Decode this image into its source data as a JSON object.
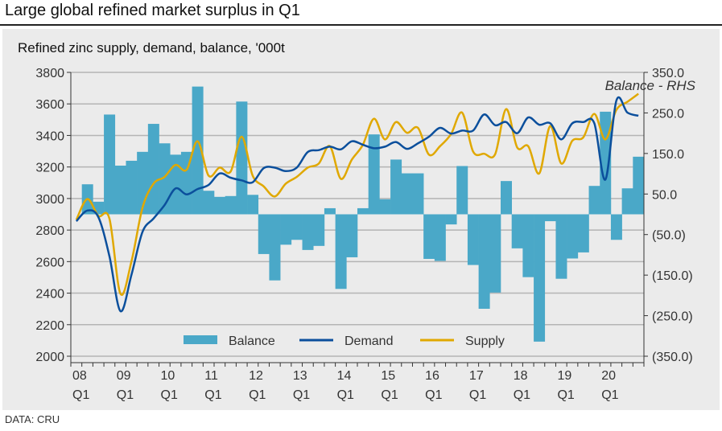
{
  "header": {
    "title": "Large global refined market surplus in Q1"
  },
  "footer": {
    "source": "DATA: CRU"
  },
  "chart_data": {
    "type": "bar+line",
    "title": "Refined zinc supply, demand, balance, '000t",
    "annotation": "Balance - RHS",
    "colors": {
      "balance": "#4aa8c8",
      "demand": "#0b4f9c",
      "supply": "#e0a800",
      "background": "#ebebeb",
      "grid": "#b4b4b4"
    },
    "categories": [
      "08Q1",
      "08Q2",
      "08Q3",
      "08Q4",
      "09Q1",
      "09Q2",
      "09Q3",
      "09Q4",
      "10Q1",
      "10Q2",
      "10Q3",
      "10Q4",
      "11Q1",
      "11Q2",
      "11Q3",
      "11Q4",
      "12Q1",
      "12Q2",
      "12Q3",
      "12Q4",
      "13Q1",
      "13Q2",
      "13Q3",
      "13Q4",
      "14Q1",
      "14Q2",
      "14Q3",
      "14Q4",
      "15Q1",
      "15Q2",
      "15Q3",
      "15Q4",
      "16Q1",
      "16Q2",
      "16Q3",
      "16Q4",
      "17Q1",
      "17Q2",
      "17Q3",
      "17Q4",
      "18Q1",
      "18Q2",
      "18Q3",
      "18Q4",
      "19Q1",
      "19Q2",
      "19Q3",
      "19Q4",
      "20Q1",
      "20Q2",
      "20Q3",
      "20Q4"
    ],
    "x_tick_labels": [
      [
        "08",
        "Q1"
      ],
      [
        "09",
        "Q1"
      ],
      [
        "10",
        "Q1"
      ],
      [
        "11",
        "Q1"
      ],
      [
        "12",
        "Q1"
      ],
      [
        "13",
        "Q1"
      ],
      [
        "14",
        "Q1"
      ],
      [
        "15",
        "Q1"
      ],
      [
        "16",
        "Q1"
      ],
      [
        "17",
        "Q1"
      ],
      [
        "18",
        "Q1"
      ],
      [
        "19",
        "Q1"
      ],
      [
        "20",
        "Q1"
      ]
    ],
    "y_left": {
      "range": [
        2000,
        3800
      ],
      "ticks": [
        "3800",
        "3600",
        "3400",
        "3200",
        "3000",
        "2800",
        "2600",
        "2400",
        "2200",
        "2000"
      ]
    },
    "y_right": {
      "range": [
        -350,
        350
      ],
      "ticks": [
        "350.0",
        "250.0",
        "150.0",
        "50.0",
        "(50.0)",
        "(150.0)",
        "(250.0)",
        "(350.0)"
      ],
      "label": "RHS"
    },
    "grid": true,
    "legend": {
      "placement": "bottom-center",
      "items": [
        "Balance",
        "Demand",
        "Supply"
      ]
    },
    "series": [
      {
        "name": "Balance",
        "type": "bar",
        "axis": "right",
        "values": [
          0,
          74,
          31,
          246,
          120,
          132,
          154,
          223,
          175,
          147,
          154,
          315,
          58,
          43,
          45,
          278,
          48,
          -98,
          -163,
          -75,
          -63,
          -88,
          -78,
          15,
          -184,
          -106,
          15,
          197,
          37,
          135,
          101,
          101,
          -110,
          -115,
          -25,
          119,
          -125,
          -233,
          -193,
          82,
          -84,
          -155,
          -314,
          -17,
          -159,
          -109,
          -94,
          70,
          253,
          -63,
          64,
          142
        ]
      },
      {
        "name": "Demand",
        "type": "line",
        "axis": "left",
        "values": [
          2856,
          2924,
          2882,
          2635,
          2286,
          2516,
          2788,
          2873,
          2958,
          3064,
          3026,
          3060,
          3086,
          3159,
          3132,
          3115,
          3103,
          3193,
          3196,
          3174,
          3196,
          3295,
          3307,
          3329,
          3312,
          3363,
          3341,
          3319,
          3329,
          3358,
          3315,
          3350,
          3392,
          3448,
          3412,
          3431,
          3431,
          3533,
          3465,
          3485,
          3414,
          3514,
          3468,
          3477,
          3375,
          3477,
          3485,
          3477,
          3120,
          3621,
          3545,
          3525
        ]
      },
      {
        "name": "Supply",
        "type": "line",
        "axis": "left",
        "values": [
          2865,
          2997,
          2890,
          2873,
          2397,
          2601,
          2941,
          3094,
          3137,
          3213,
          3182,
          3363,
          3145,
          3196,
          3171,
          3392,
          3145,
          3077,
          3013,
          3094,
          3137,
          3196,
          3222,
          3332,
          3125,
          3247,
          3341,
          3506,
          3375,
          3485,
          3417,
          3448,
          3278,
          3332,
          3409,
          3545,
          3298,
          3284,
          3281,
          3567,
          3324,
          3332,
          3159,
          3460,
          3222,
          3366,
          3388,
          3537,
          3375,
          3562,
          3613,
          3664
        ]
      }
    ]
  }
}
